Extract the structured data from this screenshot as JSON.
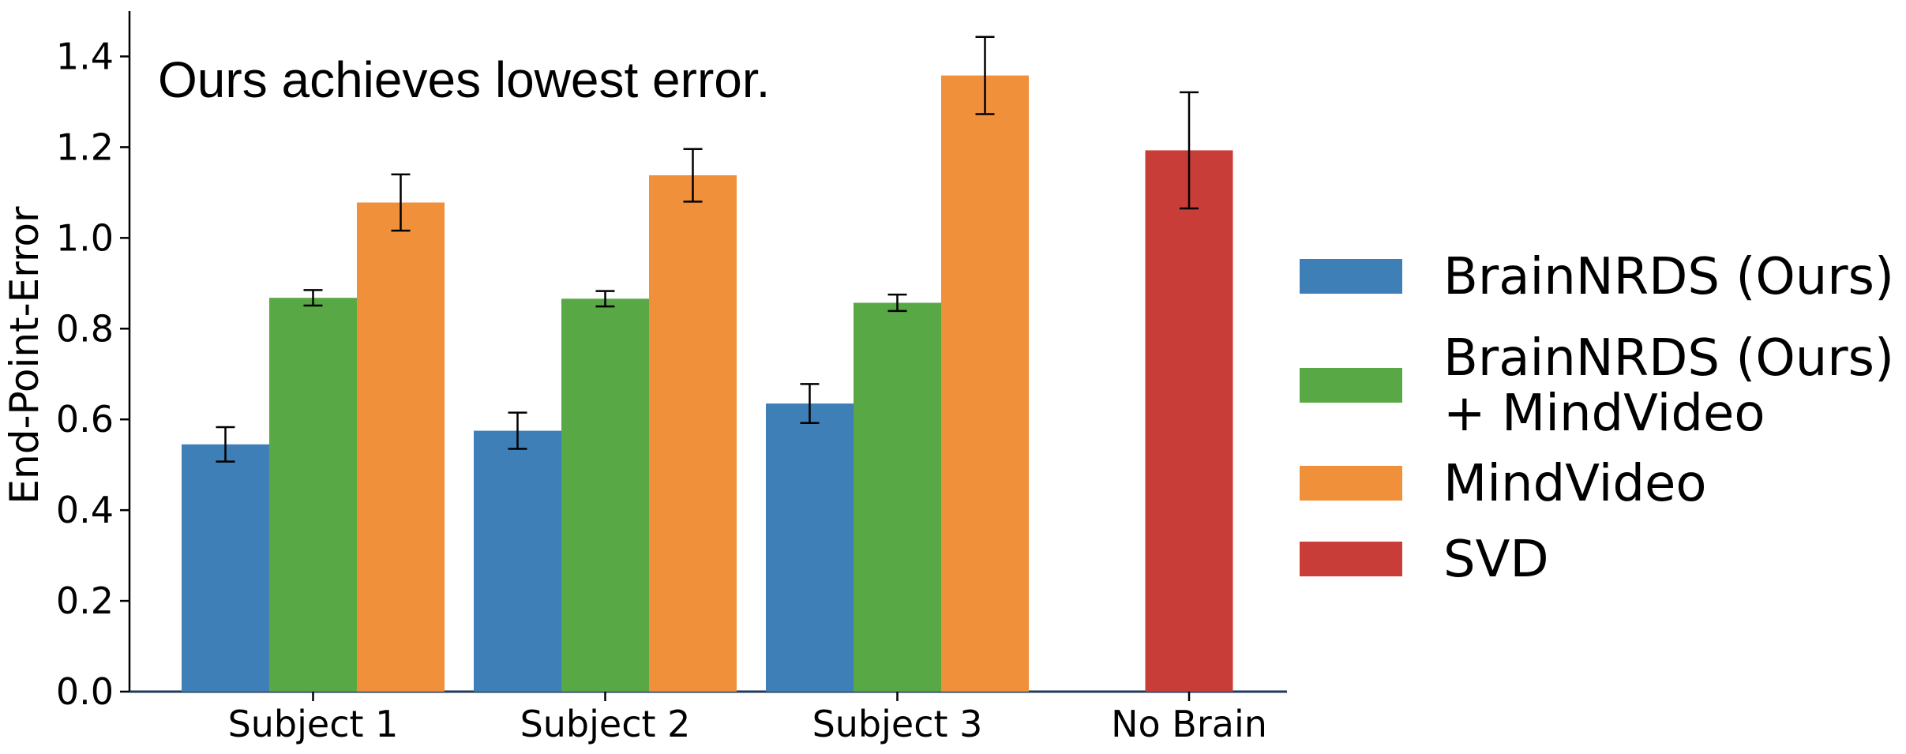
{
  "chart_data": {
    "type": "bar",
    "title": "",
    "annotation": "Ours achieves lowest error.",
    "xlabel": "",
    "ylabel": "End-Point-Error",
    "ylim": [
      0,
      1.5
    ],
    "yticks": [
      "0.0",
      "0.2",
      "0.4",
      "0.6",
      "0.8",
      "1.0",
      "1.2",
      "1.4"
    ],
    "grid": false,
    "legend_position": "right",
    "categories": [
      "Subject 1",
      "Subject 2",
      "Subject 3",
      "No Brain"
    ],
    "series": [
      {
        "name": "BrainNRDS (Ours)",
        "color": "#3f7fb8",
        "values": [
          0.545,
          0.575,
          0.635,
          null
        ],
        "errors": [
          0.038,
          0.04,
          0.043,
          null
        ]
      },
      {
        "name": "BrainNRDS (Ours)\n+ MindVideo",
        "color": "#58a845",
        "values": [
          0.868,
          0.866,
          0.857,
          null
        ],
        "errors": [
          0.017,
          0.017,
          0.018,
          null
        ]
      },
      {
        "name": "MindVideo",
        "color": "#f0903a",
        "values": [
          1.078,
          1.138,
          1.358,
          null
        ],
        "errors": [
          0.062,
          0.058,
          0.085,
          null
        ]
      },
      {
        "name": "SVD",
        "color": "#c83d37",
        "values": [
          null,
          null,
          null,
          1.193
        ],
        "errors": [
          null,
          null,
          null,
          0.128
        ]
      }
    ]
  }
}
